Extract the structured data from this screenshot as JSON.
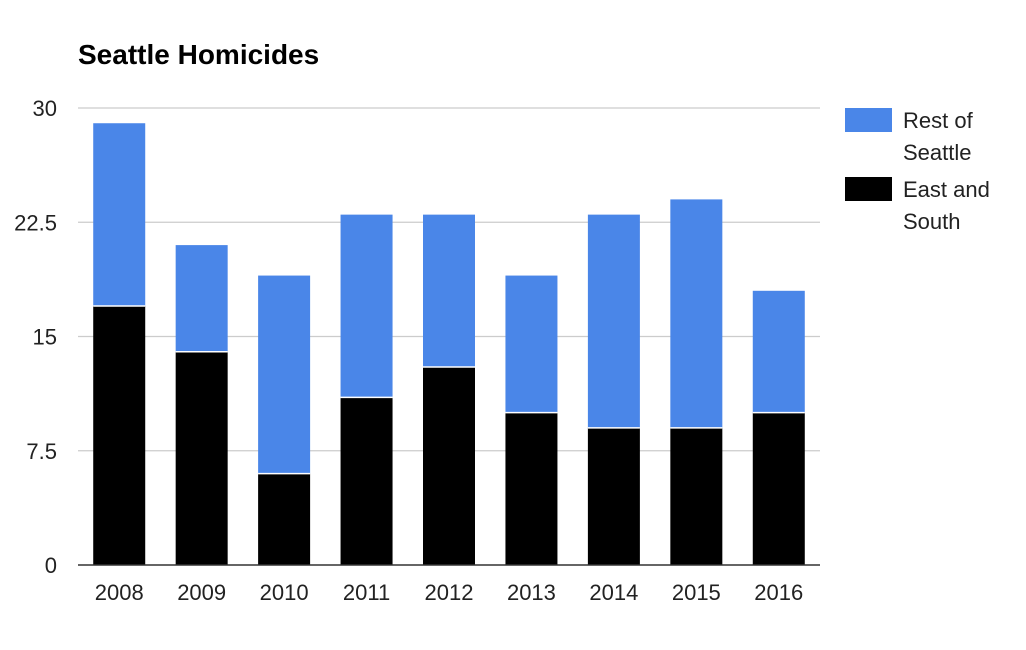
{
  "chart_data": {
    "type": "bar",
    "stacked": true,
    "title": "Seattle Homicides",
    "xlabel": "",
    "ylabel": "",
    "categories": [
      "2008",
      "2009",
      "2010",
      "2011",
      "2012",
      "2013",
      "2014",
      "2015",
      "2016"
    ],
    "series": [
      {
        "name": "East and South",
        "legend_lines": [
          "East and",
          "South"
        ],
        "color": "#000000",
        "values": [
          17,
          14,
          6,
          11,
          13,
          10,
          9,
          9,
          10
        ]
      },
      {
        "name": "Rest of Seattle",
        "legend_lines": [
          "Rest of",
          "Seattle"
        ],
        "color": "#4a86e8",
        "values": [
          12,
          7,
          13,
          12,
          10,
          9,
          14,
          15,
          8
        ]
      }
    ],
    "y_ticks": [
      "0",
      "7.5",
      "15",
      "22.5",
      "30"
    ],
    "ylim": [
      0,
      30
    ],
    "grid": true,
    "legend_position": "right"
  }
}
